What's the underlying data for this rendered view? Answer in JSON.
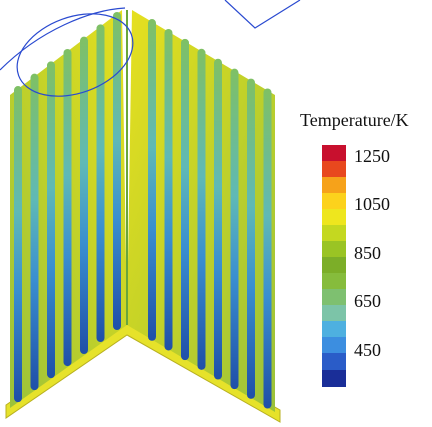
{
  "legend": {
    "title": "Temperature/K",
    "labels": [
      "1250",
      "1050",
      "850",
      "650",
      "450"
    ]
  }
}
